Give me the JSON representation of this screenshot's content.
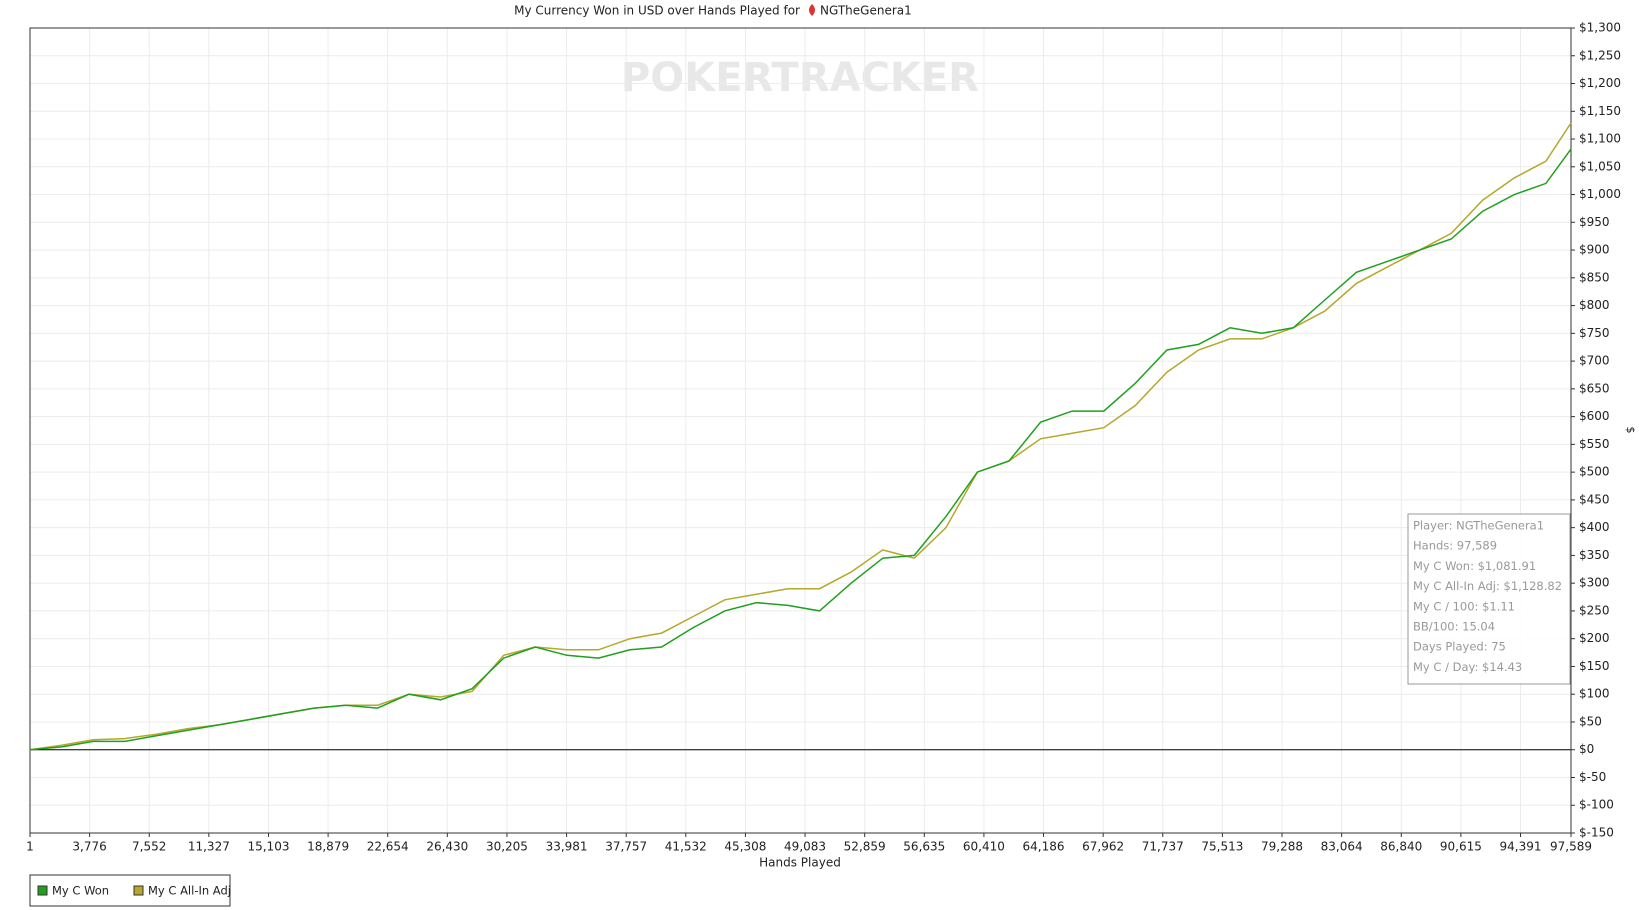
{
  "chart_data": {
    "type": "line",
    "title": "My Currency Won in USD over Hands Played for",
    "player": "NGTheGenera1",
    "watermark": "POKERTRACKER",
    "x_label": "Hands Played",
    "y_label": "$",
    "x": [
      1,
      2000,
      4000,
      6000,
      8000,
      10000,
      12000,
      14000,
      16000,
      18000,
      20000,
      22000,
      24000,
      26000,
      28000,
      30000,
      32000,
      34000,
      36000,
      38000,
      40000,
      42000,
      44000,
      46000,
      48000,
      50000,
      52000,
      54000,
      56000,
      58000,
      60000,
      62000,
      64000,
      66000,
      68000,
      70000,
      72000,
      74000,
      76000,
      78000,
      80000,
      82000,
      84000,
      86000,
      88000,
      90000,
      92000,
      94000,
      96000,
      97589
    ],
    "series": [
      {
        "name": "My C Won",
        "color": "#1fa01f",
        "values": [
          0,
          5,
          15,
          15,
          25,
          35,
          45,
          55,
          65,
          75,
          80,
          75,
          100,
          90,
          110,
          165,
          185,
          170,
          165,
          180,
          185,
          220,
          250,
          265,
          260,
          250,
          300,
          345,
          350,
          420,
          500,
          520,
          590,
          610,
          610,
          660,
          720,
          730,
          760,
          750,
          760,
          810,
          860,
          880,
          900,
          920,
          970,
          1000,
          1020,
          1081.91
        ]
      },
      {
        "name": "My C All-In Adj",
        "color": "#b5a82a",
        "values": [
          0,
          8,
          18,
          20,
          28,
          38,
          45,
          55,
          65,
          75,
          80,
          80,
          100,
          95,
          105,
          170,
          185,
          180,
          180,
          200,
          210,
          240,
          270,
          280,
          290,
          290,
          320,
          360,
          345,
          400,
          500,
          520,
          560,
          570,
          580,
          620,
          680,
          720,
          740,
          740,
          760,
          790,
          840,
          870,
          900,
          930,
          990,
          1030,
          1060,
          1128.82
        ]
      }
    ],
    "xlim": [
      1,
      97589
    ],
    "xticks": [
      1,
      {
        "value": 3776,
        "label": "3,776"
      },
      {
        "value": 7552,
        "label": "7,552"
      },
      {
        "value": 11327,
        "label": "11,327"
      },
      {
        "value": 15103,
        "label": "15,103"
      },
      {
        "value": 18879,
        "label": "18,879"
      },
      {
        "value": 22654,
        "label": "22,654"
      },
      {
        "value": 26430,
        "label": "26,430"
      },
      {
        "value": 30205,
        "label": "30,205"
      },
      {
        "value": 33981,
        "label": "33,981"
      },
      {
        "value": 37757,
        "label": "37,757"
      },
      {
        "value": 41532,
        "label": "41,532"
      },
      {
        "value": 45308,
        "label": "45,308"
      },
      {
        "value": 49083,
        "label": "49,083"
      },
      {
        "value": 52859,
        "label": "52,859"
      },
      {
        "value": 56635,
        "label": "56,635"
      },
      {
        "value": 60410,
        "label": "60,410"
      },
      {
        "value": 64186,
        "label": "64,186"
      },
      {
        "value": 67962,
        "label": "67,962"
      },
      {
        "value": 71737,
        "label": "71,737"
      },
      {
        "value": 75513,
        "label": "75,513"
      },
      {
        "value": 79288,
        "label": "79,288"
      },
      {
        "value": 83064,
        "label": "83,064"
      },
      {
        "value": 86840,
        "label": "86,840"
      },
      {
        "value": 90615,
        "label": "90,615"
      },
      {
        "value": 94391,
        "label": "94,391"
      },
      {
        "value": 97589,
        "label": "97,589"
      }
    ],
    "ylim": [
      -150,
      1300
    ],
    "yticks": [
      {
        "value": -150,
        "label": "$-150"
      },
      {
        "value": -100,
        "label": "$-100"
      },
      {
        "value": -50,
        "label": "$-50"
      },
      {
        "value": 0,
        "label": "$0"
      },
      {
        "value": 50,
        "label": "$50"
      },
      {
        "value": 100,
        "label": "$100"
      },
      {
        "value": 150,
        "label": "$150"
      },
      {
        "value": 200,
        "label": "$200"
      },
      {
        "value": 250,
        "label": "$250"
      },
      {
        "value": 300,
        "label": "$300"
      },
      {
        "value": 350,
        "label": "$350"
      },
      {
        "value": 400,
        "label": "$400"
      },
      {
        "value": 450,
        "label": "$450"
      },
      {
        "value": 500,
        "label": "$500"
      },
      {
        "value": 550,
        "label": "$550"
      },
      {
        "value": 600,
        "label": "$600"
      },
      {
        "value": 650,
        "label": "$650"
      },
      {
        "value": 700,
        "label": "$700"
      },
      {
        "value": 750,
        "label": "$750"
      },
      {
        "value": 800,
        "label": "$800"
      },
      {
        "value": 850,
        "label": "$850"
      },
      {
        "value": 900,
        "label": "$900"
      },
      {
        "value": 950,
        "label": "$950"
      },
      {
        "value": 1000,
        "label": "$1,000"
      },
      {
        "value": 1050,
        "label": "$1,050"
      },
      {
        "value": 1100,
        "label": "$1,100"
      },
      {
        "value": 1150,
        "label": "$1,150"
      },
      {
        "value": 1200,
        "label": "$1,200"
      },
      {
        "value": 1250,
        "label": "$1,250"
      },
      {
        "value": 1300,
        "label": "$1,300"
      }
    ],
    "grid": true,
    "legend": "bottom-left",
    "tooltip": [
      "Player: NGTheGenera1",
      "Hands: 97,589",
      "My C Won: $1,081.91",
      "My C All-In Adj: $1,128.82",
      "My C / 100: $1.11",
      "BB/100: 15.04",
      "Days Played: 75",
      "My C / Day: $14.43"
    ]
  }
}
